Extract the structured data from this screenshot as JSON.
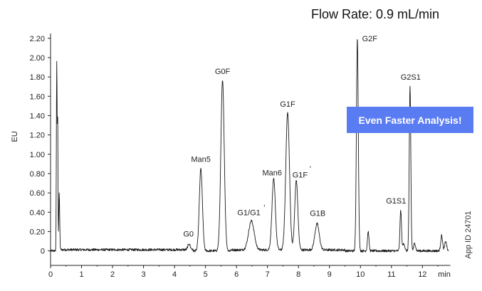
{
  "chart_data": {
    "type": "line",
    "title": "Flow Rate: 0.9 mL/min",
    "xlabel": "min",
    "ylabel": "EU",
    "xlim": [
      0,
      12.9
    ],
    "ylim": [
      -0.15,
      2.25
    ],
    "x_ticks": [
      0,
      1,
      2,
      3,
      4,
      5,
      6,
      7,
      8,
      9,
      10,
      11,
      12
    ],
    "x_tick_labels": [
      "0",
      "1",
      "2",
      "3",
      "4",
      "5",
      "6",
      "7",
      "8",
      "9",
      "10",
      "11",
      "12"
    ],
    "y_ticks": [
      0,
      0.2,
      0.4,
      0.6,
      0.8,
      1.0,
      1.2,
      1.4,
      1.6,
      1.8,
      2.0,
      2.2
    ],
    "y_tick_labels": [
      "0",
      "0.20",
      "0.40",
      "0.60",
      "0.80",
      "1.00",
      "1.20",
      "1.40",
      "1.60",
      "1.80",
      "2.00",
      "2.20"
    ],
    "baseline": 0.0,
    "peaks": [
      {
        "label": "",
        "x": 0.2,
        "height": 1.95,
        "width": 0.012
      },
      {
        "label": "",
        "x": 0.23,
        "height": 1.35,
        "width": 0.01
      },
      {
        "label": "",
        "x": 0.28,
        "height": 0.6,
        "width": 0.015
      },
      {
        "label": "G0",
        "x": 4.47,
        "height": 0.06,
        "width": 0.04
      },
      {
        "label": "Man5",
        "x": 4.85,
        "height": 0.85,
        "width": 0.05
      },
      {
        "label": "G0F",
        "x": 5.55,
        "height": 1.76,
        "width": 0.055
      },
      {
        "label": "G1/G1 '",
        "x": 6.48,
        "height": 0.3,
        "width": 0.09
      },
      {
        "label": "Man6",
        "x": 7.2,
        "height": 0.73,
        "width": 0.055
      },
      {
        "label": "G1F",
        "x": 7.65,
        "height": 1.42,
        "width": 0.06
      },
      {
        "label": "G1F '",
        "x": 7.93,
        "height": 0.72,
        "width": 0.05
      },
      {
        "label": "G1B",
        "x": 8.6,
        "height": 0.27,
        "width": 0.07
      },
      {
        "label": "G2F",
        "x": 9.9,
        "height": 2.2,
        "width": 0.03
      },
      {
        "label": "",
        "x": 10.25,
        "height": 0.2,
        "width": 0.025
      },
      {
        "label": "G1S1",
        "x": 11.3,
        "height": 0.42,
        "width": 0.025
      },
      {
        "label": "",
        "x": 11.4,
        "height": 0.08,
        "width": 0.03
      },
      {
        "label": "G2S1",
        "x": 11.6,
        "height": 1.7,
        "width": 0.025
      },
      {
        "label": "",
        "x": 11.75,
        "height": 0.08,
        "width": 0.03
      },
      {
        "label": "",
        "x": 12.62,
        "height": 0.16,
        "width": 0.03
      },
      {
        "label": "",
        "x": 12.75,
        "height": 0.1,
        "width": 0.03
      }
    ],
    "annotations": [
      {
        "text": "G0",
        "x": 4.45,
        "y": 0.15
      },
      {
        "text": "Man5",
        "x": 4.85,
        "y": 0.92
      },
      {
        "text": "G0F",
        "x": 5.55,
        "y": 1.83
      },
      {
        "text": "G1/G1",
        "x": 6.4,
        "y": 0.37
      },
      {
        "text": "'",
        "x": 6.9,
        "y": 0.42
      },
      {
        "text": "Man6",
        "x": 7.15,
        "y": 0.78
      },
      {
        "text": "G1F",
        "x": 7.65,
        "y": 1.49
      },
      {
        "text": "G1F",
        "x": 8.05,
        "y": 0.76
      },
      {
        "text": "'",
        "x": 8.38,
        "y": 0.82
      },
      {
        "text": "G1B",
        "x": 8.62,
        "y": 0.36
      },
      {
        "text": "G2F",
        "x": 10.3,
        "y": 2.17
      },
      {
        "text": "G1S1",
        "x": 11.15,
        "y": 0.49
      },
      {
        "text": "G2S1",
        "x": 11.62,
        "y": 1.77
      }
    ],
    "line_color": "#1a1a1a",
    "grid": false
  },
  "banner": {
    "text": "Even Faster Analysis!",
    "color": "#5a7cf3"
  },
  "app_id": "App ID 24701"
}
